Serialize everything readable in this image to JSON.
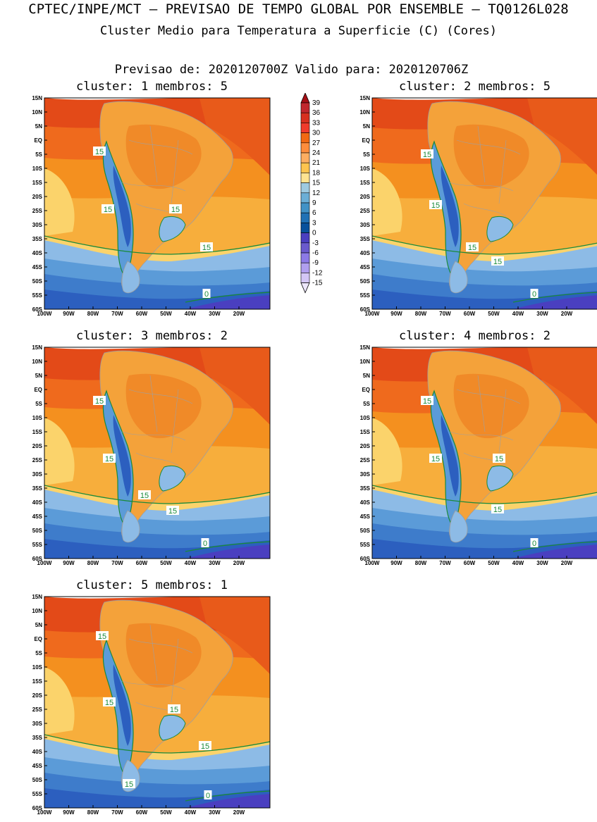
{
  "header": {
    "line1": "CPTEC/INPE/MCT – PREVISAO DE TEMPO GLOBAL POR ENSEMBLE – TQ0126L028",
    "line2": "Cluster Medio para Temperatura a Superficie (C) (Cores)",
    "line3": "Previsao de: 2020120700Z    Valido para: 2020120706Z"
  },
  "axes": {
    "lat_labels": [
      "15N",
      "10N",
      "5N",
      "EQ",
      "5S",
      "10S",
      "15S",
      "20S",
      "25S",
      "30S",
      "35S",
      "40S",
      "45S",
      "50S",
      "55S",
      "60S"
    ],
    "lon_labels": [
      "100W",
      "90W",
      "80W",
      "70W",
      "60W",
      "50W",
      "40W",
      "30W",
      "20W"
    ]
  },
  "colorbar": {
    "levels": [
      "39",
      "36",
      "33",
      "30",
      "27",
      "24",
      "21",
      "18",
      "15",
      "12",
      "9",
      "6",
      "3",
      "0",
      "-3",
      "-6",
      "-9",
      "-12",
      "-15"
    ],
    "colors": [
      "#a50f15",
      "#c1272d",
      "#d7301f",
      "#ef3b2c",
      "#f16913",
      "#fd8d3c",
      "#fdae61",
      "#fec44f",
      "#fee391",
      "#9ecae1",
      "#6baed6",
      "#4292c6",
      "#2171b5",
      "#08519c",
      "#4a3fc0",
      "#6a5acd",
      "#8c7ae6",
      "#b09fee",
      "#d3c6f5",
      "#ece6fb"
    ]
  },
  "panels": [
    {
      "title": "cluster: 1   membros: 5",
      "contour_labels": [
        "15",
        "15",
        "15",
        "15",
        "0"
      ]
    },
    {
      "title": "cluster: 2   membros: 5",
      "contour_labels": [
        "15",
        "15",
        "15",
        "15",
        "0"
      ]
    },
    {
      "title": "cluster: 3   membros: 2",
      "contour_labels": [
        "15",
        "15",
        "15",
        "15",
        "0"
      ]
    },
    {
      "title": "cluster: 4   membros: 2",
      "contour_labels": [
        "15",
        "15",
        "15",
        "15",
        "0"
      ]
    },
    {
      "title": "cluster: 5   membros: 1",
      "contour_labels": [
        "15",
        "15",
        "15",
        "15",
        "15",
        "0"
      ]
    }
  ]
}
